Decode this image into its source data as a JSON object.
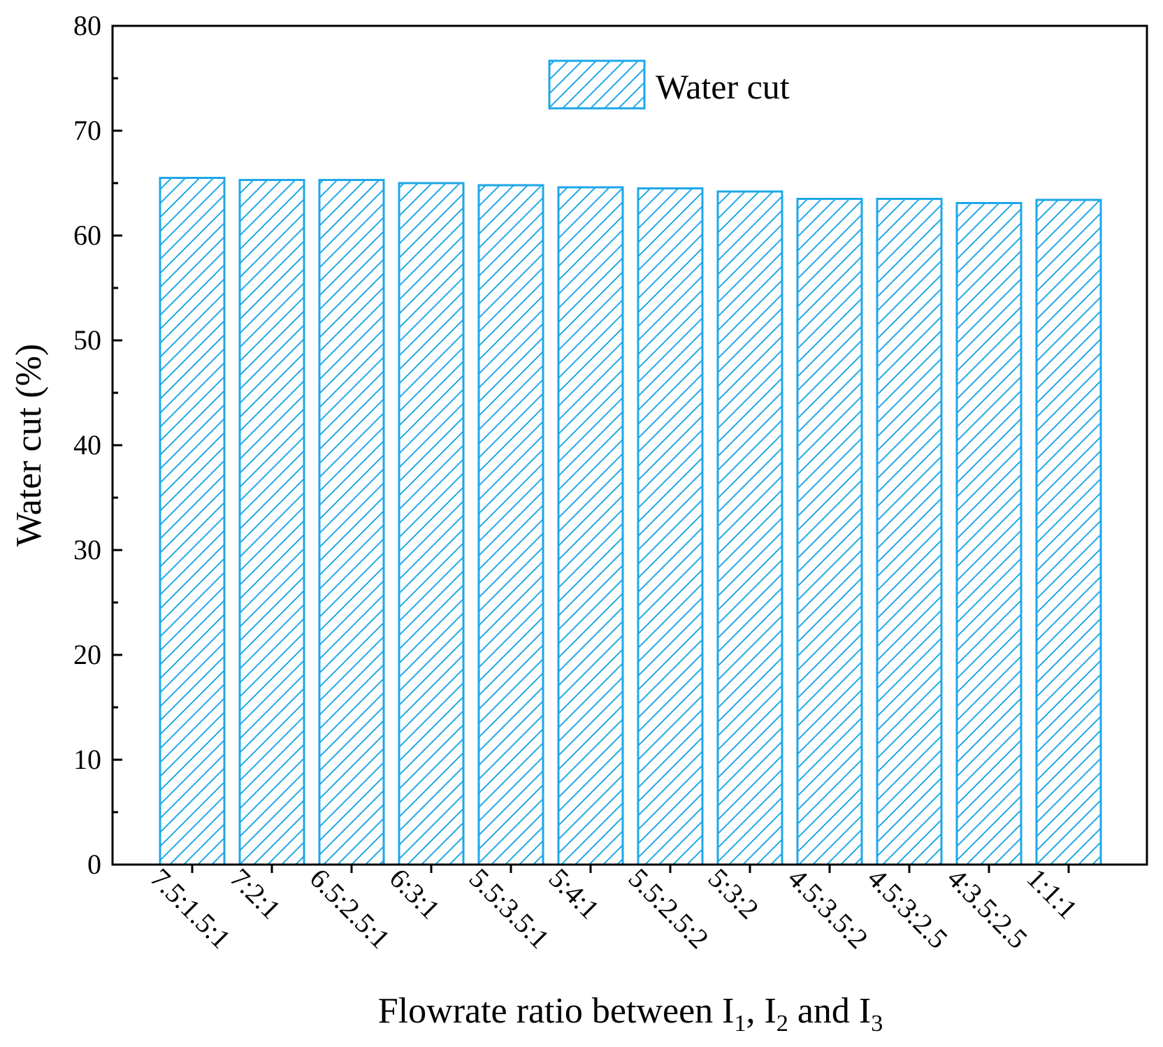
{
  "chart_data": {
    "type": "bar",
    "title": "",
    "xlabel": "Flowrate ratio between I1, I2 and I3",
    "xlabel_parts": {
      "prefix": "Flowrate ratio between I",
      "sub1": "1",
      "mid1": ", I",
      "sub2": "2",
      "mid2": " and I",
      "sub3": "3"
    },
    "ylabel": "Water cut (%)",
    "ylim": [
      0,
      80
    ],
    "yticks": [
      0,
      10,
      20,
      30,
      40,
      50,
      60,
      70,
      80
    ],
    "grid": false,
    "legend_position": "top-center",
    "categories": [
      "7.5:1.5:1",
      "7:2:1",
      "6.5:2.5:1",
      "6:3:1",
      "5.5:3.5:1",
      "5:4:1",
      "5.5:2.5:2",
      "5:3:2",
      "4.5:3.5:2",
      "4.5:3:2.5",
      "4:3.5:2.5",
      "1:1:1"
    ],
    "series": [
      {
        "name": "Water cut",
        "values": [
          65.5,
          65.3,
          65.3,
          65.0,
          64.8,
          64.6,
          64.5,
          64.2,
          63.5,
          63.5,
          63.1,
          63.4
        ],
        "color": "#1ea7e8",
        "pattern": "diagonal-hatch"
      }
    ]
  }
}
